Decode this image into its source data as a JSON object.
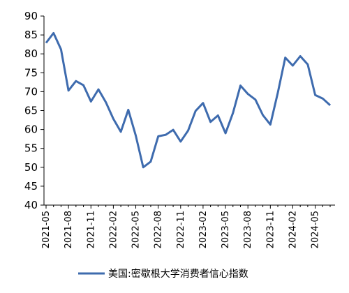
{
  "chart_data": {
    "type": "line",
    "title": "",
    "xlabel": "",
    "ylabel": "",
    "ylim": [
      40,
      90
    ],
    "yticks": [
      40,
      45,
      50,
      55,
      60,
      65,
      70,
      75,
      80,
      85,
      90
    ],
    "xtick_labels": [
      "2021-05",
      "2021-08",
      "2021-11",
      "2022-02",
      "2022-05",
      "2022-08",
      "2022-11",
      "2023-02",
      "2023-05",
      "2023-08",
      "2023-11",
      "2024-02",
      "2024-05"
    ],
    "x": [
      "2021-05",
      "2021-06",
      "2021-07",
      "2021-08",
      "2021-09",
      "2021-10",
      "2021-11",
      "2021-12",
      "2022-01",
      "2022-02",
      "2022-03",
      "2022-04",
      "2022-05",
      "2022-06",
      "2022-07",
      "2022-08",
      "2022-09",
      "2022-10",
      "2022-11",
      "2022-12",
      "2023-01",
      "2023-02",
      "2023-03",
      "2023-04",
      "2023-05",
      "2023-06",
      "2023-07",
      "2023-08",
      "2023-09",
      "2023-10",
      "2023-11",
      "2023-12",
      "2024-01",
      "2024-02",
      "2024-03",
      "2024-04",
      "2024-05",
      "2024-06",
      "2024-07"
    ],
    "series": [
      {
        "name": "美国:密歇根大学消费者信心指数",
        "color": "#3E6BAE",
        "values": [
          82.9,
          85.5,
          81.2,
          70.3,
          72.8,
          71.7,
          67.4,
          70.6,
          67.2,
          62.8,
          59.4,
          65.2,
          58.4,
          50.0,
          51.5,
          58.2,
          58.6,
          59.9,
          56.8,
          59.7,
          64.9,
          67.0,
          62.0,
          63.7,
          59.0,
          64.4,
          71.6,
          69.4,
          67.9,
          63.8,
          61.3,
          69.7,
          79.0,
          76.9,
          79.4,
          77.2,
          69.1,
          68.2,
          66.4
        ]
      }
    ],
    "grid": false,
    "legend_position": "bottom-center"
  }
}
